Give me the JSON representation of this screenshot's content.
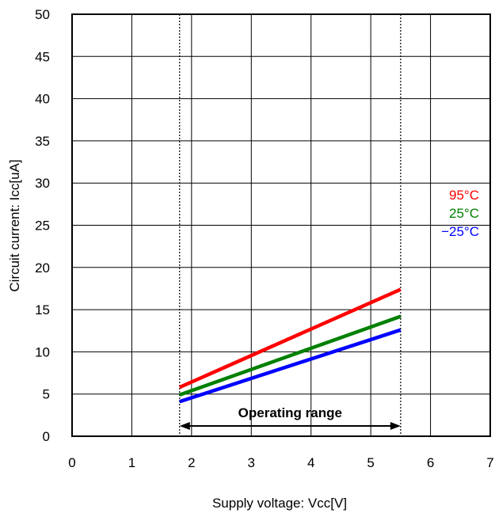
{
  "chart_data": {
    "type": "line",
    "title": "",
    "xlabel": "Supply voltage: Vcc[V]",
    "ylabel": "Circuit current: Icc[uA]",
    "xlim": [
      0,
      7
    ],
    "ylim": [
      0,
      50
    ],
    "x_ticks": [
      "0",
      "1",
      "2",
      "3",
      "4",
      "5",
      "6",
      "7"
    ],
    "y_ticks": [
      "0",
      "5",
      "10",
      "15",
      "20",
      "25",
      "30",
      "35",
      "40",
      "45",
      "50"
    ],
    "grid": true,
    "legend_position": "right",
    "series": [
      {
        "name": "95°C",
        "color": "#ff0000",
        "x": [
          1.8,
          5.5
        ],
        "y": [
          5.8,
          17.4
        ]
      },
      {
        "name": "25°C",
        "color": "#008000",
        "x": [
          1.8,
          5.5
        ],
        "y": [
          4.9,
          14.2
        ]
      },
      {
        "name": "−25°C",
        "color": "#0000ff",
        "x": [
          1.8,
          5.5
        ],
        "y": [
          4.1,
          12.6
        ]
      }
    ],
    "operating_range": {
      "label": "Operating range",
      "x_min": 1.8,
      "x_max": 5.5
    }
  }
}
